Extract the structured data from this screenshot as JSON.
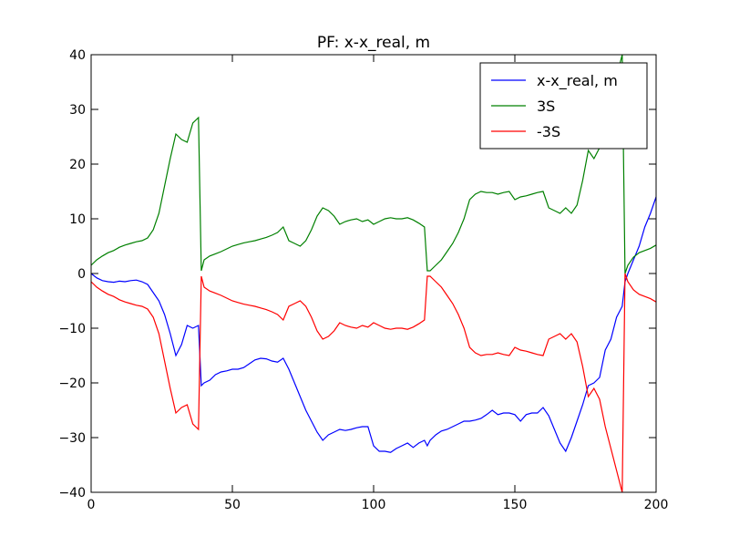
{
  "chart_data": {
    "type": "line",
    "title": "PF: x-x_real, m",
    "xlabel": "",
    "ylabel": "",
    "xlim": [
      0,
      200
    ],
    "ylim": [
      -40,
      40
    ],
    "xticks": [
      0,
      50,
      100,
      150,
      200
    ],
    "yticks": [
      -40,
      -30,
      -20,
      -10,
      0,
      10,
      20,
      30,
      40
    ],
    "grid": false,
    "legend_position": "top-right",
    "x": [
      0,
      2,
      4,
      6,
      8,
      10,
      12,
      14,
      16,
      18,
      20,
      22,
      24,
      26,
      28,
      30,
      32,
      34,
      36,
      38,
      39,
      40,
      42,
      44,
      46,
      48,
      50,
      52,
      54,
      56,
      58,
      60,
      62,
      64,
      66,
      68,
      70,
      72,
      74,
      76,
      78,
      80,
      82,
      84,
      86,
      88,
      90,
      92,
      94,
      96,
      98,
      100,
      102,
      104,
      106,
      108,
      110,
      112,
      114,
      116,
      118,
      119,
      120,
      122,
      124,
      126,
      128,
      130,
      132,
      134,
      136,
      138,
      140,
      142,
      144,
      146,
      148,
      150,
      152,
      154,
      156,
      158,
      160,
      162,
      164,
      166,
      168,
      170,
      172,
      174,
      176,
      178,
      180,
      182,
      184,
      186,
      188,
      189,
      190,
      192,
      194,
      196,
      198,
      200
    ],
    "series": [
      {
        "name": "x-x_real, m",
        "color": "#0000ff",
        "values": [
          0,
          -0.8,
          -1.3,
          -1.5,
          -1.6,
          -1.4,
          -1.5,
          -1.3,
          -1.2,
          -1.5,
          -2.0,
          -3.5,
          -5.0,
          -7.5,
          -11.0,
          -15.0,
          -13.0,
          -9.5,
          -10.0,
          -9.5,
          -20.5,
          -20.0,
          -19.5,
          -18.5,
          -18.0,
          -17.8,
          -17.5,
          -17.5,
          -17.2,
          -16.5,
          -15.8,
          -15.5,
          -15.6,
          -16.0,
          -16.2,
          -15.5,
          -17.5,
          -20.0,
          -22.5,
          -25.0,
          -27.0,
          -29.0,
          -30.5,
          -29.5,
          -29.0,
          -28.5,
          -28.7,
          -28.5,
          -28.2,
          -28.0,
          -28.0,
          -31.5,
          -32.5,
          -32.5,
          -32.7,
          -32.0,
          -31.5,
          -31.0,
          -31.8,
          -31.0,
          -30.5,
          -31.5,
          -30.5,
          -29.5,
          -28.8,
          -28.5,
          -28.0,
          -27.5,
          -27.0,
          -27.0,
          -26.8,
          -26.5,
          -25.8,
          -25.0,
          -25.8,
          -25.5,
          -25.5,
          -25.8,
          -27.0,
          -25.8,
          -25.5,
          -25.5,
          -24.5,
          -26.0,
          -28.5,
          -31.0,
          -32.5,
          -30.0,
          -27.0,
          -24.0,
          -20.5,
          -20.0,
          -19.0,
          -14.0,
          -12.0,
          -8.0,
          -6.0,
          -1.5,
          0.0,
          2.5,
          5.0,
          8.5,
          11.0,
          14.0
        ]
      },
      {
        "name": "3S",
        "color": "#008000",
        "values": [
          1.5,
          2.5,
          3.2,
          3.8,
          4.2,
          4.8,
          5.2,
          5.5,
          5.8,
          6.0,
          6.5,
          8.0,
          11.0,
          16.0,
          21.0,
          25.5,
          24.5,
          24.0,
          27.5,
          28.5,
          0.5,
          2.5,
          3.2,
          3.6,
          4.0,
          4.5,
          5.0,
          5.3,
          5.6,
          5.8,
          6.0,
          6.3,
          6.6,
          7.0,
          7.5,
          8.5,
          6.0,
          5.5,
          5.0,
          6.0,
          8.0,
          10.5,
          12.0,
          11.5,
          10.5,
          9.0,
          9.5,
          9.8,
          10.0,
          9.5,
          9.8,
          9.0,
          9.5,
          10.0,
          10.2,
          10.0,
          10.0,
          10.2,
          9.8,
          9.2,
          8.5,
          0.5,
          0.5,
          1.5,
          2.5,
          4.0,
          5.5,
          7.5,
          10.0,
          13.5,
          14.5,
          15.0,
          14.8,
          14.8,
          14.5,
          14.8,
          15.0,
          13.5,
          14.0,
          14.2,
          14.5,
          14.8,
          15.0,
          12.0,
          11.5,
          11.0,
          12.0,
          11.0,
          12.5,
          17.0,
          22.5,
          21.0,
          23.0,
          28.0,
          32.0,
          36.0,
          40.0,
          0.0,
          1.5,
          3.0,
          3.8,
          4.2,
          4.6,
          5.2
        ]
      },
      {
        "name": "-3S",
        "color": "#ff0000",
        "values": [
          -1.5,
          -2.5,
          -3.2,
          -3.8,
          -4.2,
          -4.8,
          -5.2,
          -5.5,
          -5.8,
          -6.0,
          -6.5,
          -8.0,
          -11.0,
          -16.0,
          -21.0,
          -25.5,
          -24.5,
          -24.0,
          -27.5,
          -28.5,
          -0.5,
          -2.5,
          -3.2,
          -3.6,
          -4.0,
          -4.5,
          -5.0,
          -5.3,
          -5.6,
          -5.8,
          -6.0,
          -6.3,
          -6.6,
          -7.0,
          -7.5,
          -8.5,
          -6.0,
          -5.5,
          -5.0,
          -6.0,
          -8.0,
          -10.5,
          -12.0,
          -11.5,
          -10.5,
          -9.0,
          -9.5,
          -9.8,
          -10.0,
          -9.5,
          -9.8,
          -9.0,
          -9.5,
          -10.0,
          -10.2,
          -10.0,
          -10.0,
          -10.2,
          -9.8,
          -9.2,
          -8.5,
          -0.5,
          -0.5,
          -1.5,
          -2.5,
          -4.0,
          -5.5,
          -7.5,
          -10.0,
          -13.5,
          -14.5,
          -15.0,
          -14.8,
          -14.8,
          -14.5,
          -14.8,
          -15.0,
          -13.5,
          -14.0,
          -14.2,
          -14.5,
          -14.8,
          -15.0,
          -12.0,
          -11.5,
          -11.0,
          -12.0,
          -11.0,
          -12.5,
          -17.0,
          -22.5,
          -21.0,
          -23.0,
          -28.0,
          -32.0,
          -36.0,
          -40.0,
          0.0,
          -1.5,
          -3.0,
          -3.8,
          -4.2,
          -4.6,
          -5.2
        ]
      }
    ]
  }
}
